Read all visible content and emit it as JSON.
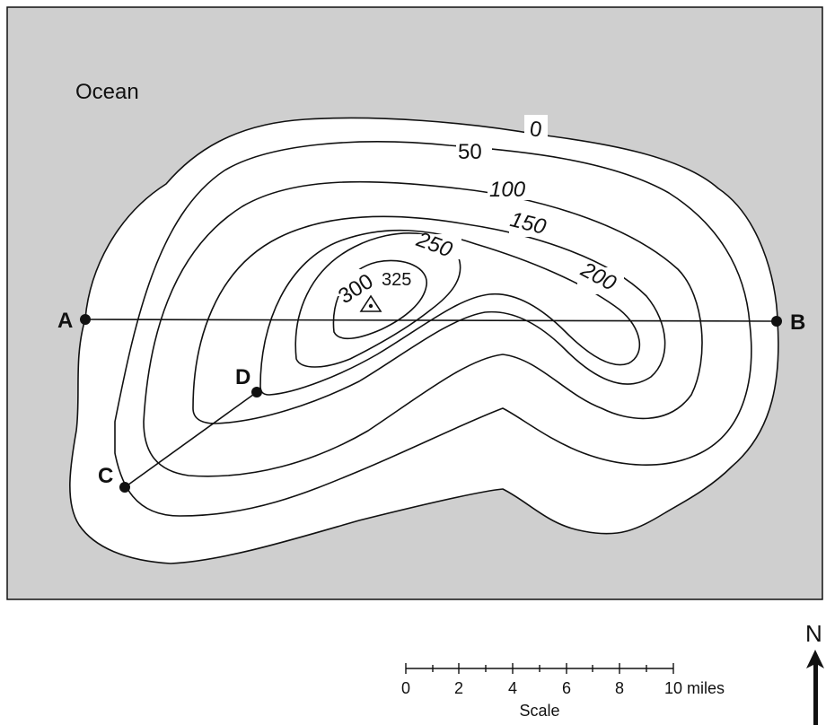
{
  "map": {
    "water_label": "Ocean",
    "colors": {
      "ocean": "#cfcfcf",
      "land": "#ffffff",
      "line": "#111111"
    },
    "contour_labels": [
      "0",
      "50",
      "100",
      "150",
      "200",
      "250",
      "300",
      "325"
    ],
    "summit_icon": "triangle-benchmark-icon",
    "points": {
      "a": "A",
      "b": "B",
      "c": "C",
      "d": "D"
    }
  },
  "scale": {
    "ticks": [
      "0",
      "2",
      "4",
      "6",
      "8",
      "10 miles"
    ],
    "caption": "Scale"
  },
  "north": {
    "label": "N",
    "icon": "north-arrow-icon"
  }
}
